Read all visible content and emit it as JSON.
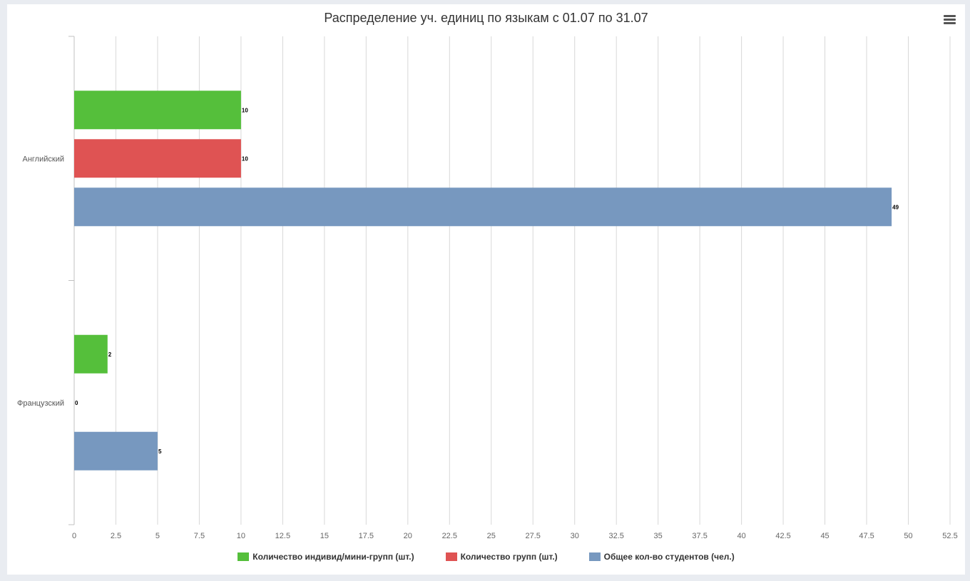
{
  "chart_data": {
    "type": "bar",
    "orientation": "horizontal",
    "title": "Распределение уч. единиц по языкам с 01.07 по 31.07",
    "categories": [
      "Английский",
      "Французский"
    ],
    "series": [
      {
        "name": "Количество индивид/мини-групп (шт.)",
        "color": "#55bf3b",
        "values": [
          10,
          2
        ]
      },
      {
        "name": "Количество групп (шт.)",
        "color": "#df5353",
        "values": [
          10,
          0
        ]
      },
      {
        "name": "Общее кол-во студентов (чел.)",
        "color": "#7798bf",
        "values": [
          49,
          5
        ]
      }
    ],
    "xticks": [
      "0",
      "2.5",
      "5",
      "7.5",
      "10",
      "12.5",
      "15",
      "17.5",
      "20",
      "22.5",
      "25",
      "27.5",
      "30",
      "32.5",
      "35",
      "37.5",
      "40",
      "42.5",
      "45",
      "47.5",
      "50",
      "52.5"
    ],
    "xlim": [
      0,
      52.5
    ],
    "grid": true,
    "data_labels": true,
    "legend_position": "bottom"
  },
  "menu": {
    "icon": "hamburger-menu-icon"
  }
}
